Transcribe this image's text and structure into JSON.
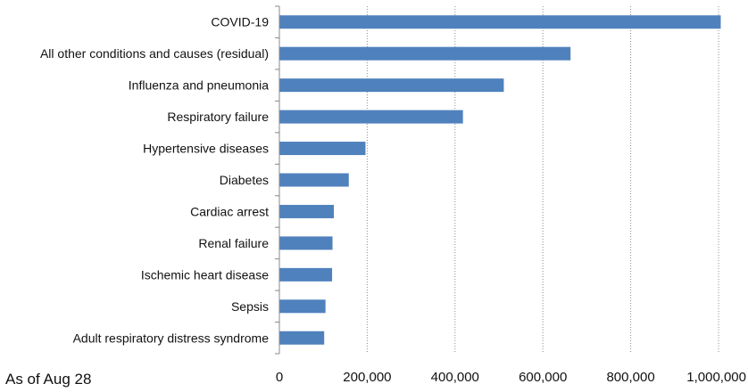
{
  "chart_data": {
    "type": "bar",
    "orientation": "horizontal",
    "categories": [
      "COVID-19",
      "All other conditions and causes (residual)",
      "Influenza and pneumonia",
      "Respiratory failure",
      "Hypertensive diseases",
      "Diabetes",
      "Cardiac arrest",
      "Renal failure",
      "Ischemic heart disease",
      "Sepsis",
      "Adult respiratory distress syndrome"
    ],
    "values": [
      1005000,
      663000,
      511000,
      418000,
      196000,
      158000,
      124000,
      121000,
      120000,
      105000,
      102000
    ],
    "xlim": [
      0,
      1000000
    ],
    "xticks": [
      0,
      200000,
      400000,
      600000,
      800000,
      1000000
    ],
    "xtick_labels": [
      "0",
      "200,000",
      "400,000",
      "600,000",
      "800,000",
      "1,000,000"
    ],
    "grid": "vertical-dotted",
    "bar_color": "#4f81bd",
    "note": "As of Aug 28"
  }
}
